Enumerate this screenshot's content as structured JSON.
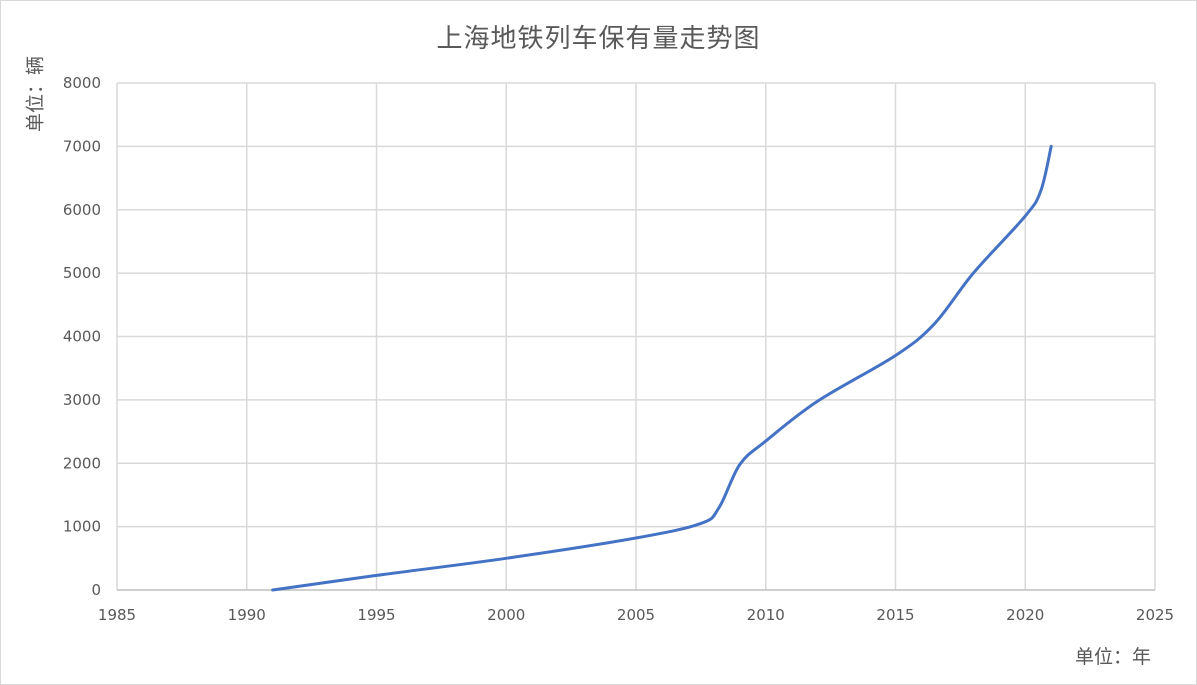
{
  "chart_data": {
    "type": "line",
    "title": "上海地铁列车保有量走势图",
    "xlabel": "单位：年",
    "ylabel": "单位：辆",
    "xlim": [
      1985,
      2025
    ],
    "ylim": [
      0,
      8000
    ],
    "x_ticks": [
      1985,
      1990,
      1995,
      2000,
      2005,
      2010,
      2015,
      2020,
      2025
    ],
    "y_ticks": [
      0,
      1000,
      2000,
      3000,
      4000,
      5000,
      6000,
      7000,
      8000
    ],
    "grid": true,
    "series": [
      {
        "color": "#4472c4",
        "smooth": true,
        "x": [
          1991,
          1995,
          2000,
          2005,
          2007.5,
          2008.2,
          2009,
          2010,
          2012,
          2015,
          2016.5,
          2018,
          2020,
          2020.6,
          2021
        ],
        "y": [
          0,
          230,
          500,
          820,
          1050,
          1300,
          1980,
          2350,
          2980,
          3700,
          4200,
          5000,
          5900,
          6300,
          7000
        ]
      }
    ]
  }
}
